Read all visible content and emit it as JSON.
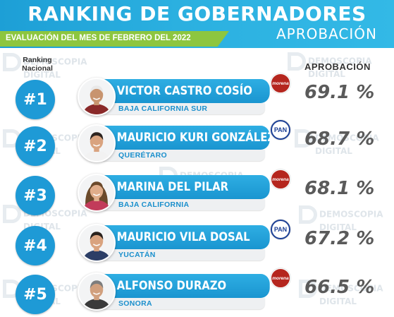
{
  "header": {
    "title": "RANKING DE GOBERNADORES",
    "subtitle": "APROBACIÓN",
    "evaluation": "EVALUACIÓN DEL MES DE FEBRERO DEL 2022"
  },
  "labels": {
    "ranking_line1": "Ranking",
    "ranking_line2": "Nacional",
    "approval_header": "APROBACIÓN"
  },
  "watermark": {
    "line1": "DEMOSCOPIA",
    "line2": "DIGITAL"
  },
  "colors": {
    "header_blue": "#1d9fd6",
    "green": "#8dc63f",
    "bar_blue": "#1a95d0",
    "morena": "#b5261e",
    "pan": "#1b3f95",
    "percent_gray": "#5a5a5a"
  },
  "rows": [
    {
      "rank": "#1",
      "name": "VICTOR CASTRO COSÍO",
      "state": "BAJA CALIFORNIA SUR",
      "party": "morena",
      "approval": "69.1 %",
      "photo": "older-man-white-hair",
      "skin": "#c8946f",
      "hair": "#e9e9e9",
      "shirt": "#8a2a2a"
    },
    {
      "rank": "#2",
      "name": "MAURICIO KURI GONZÁLEZ",
      "state": "QUERÉTARO",
      "party": "PAN",
      "approval": "68.7 %",
      "photo": "man-dark-hair",
      "skin": "#d9a37f",
      "hair": "#2d2420",
      "shirt": "#f2f2f2"
    },
    {
      "rank": "#3",
      "name": "MARINA DEL PILAR",
      "state": "BAJA CALIFORNIA",
      "party": "morena",
      "approval": "68.1 %",
      "photo": "woman-long-hair",
      "skin": "#e0ad8a",
      "hair": "#6b4a2b",
      "shirt": "#c23b5a"
    },
    {
      "rank": "#4",
      "name": "MAURICIO VILA DOSAL",
      "state": "YUCATÁN",
      "party": "PAN",
      "approval": "67.2 %",
      "photo": "man-dark-hair-smiling",
      "skin": "#d9a37f",
      "hair": "#2a221d",
      "shirt": "#2c3e66"
    },
    {
      "rank": "#5",
      "name": "ALFONSO DURAZO",
      "state": "SONORA",
      "party": "morena",
      "approval": "66.5 %",
      "photo": "man-gray-hair",
      "skin": "#d1a07e",
      "hair": "#7d7d7d",
      "shirt": "#3a3a3a"
    }
  ]
}
